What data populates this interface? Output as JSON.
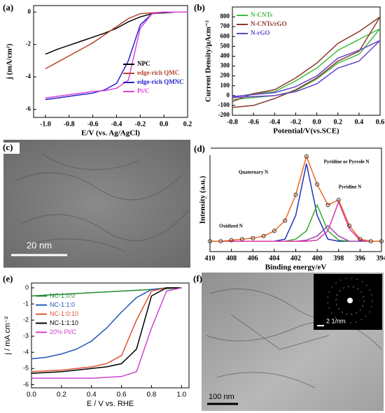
{
  "chart_data": [
    {
      "type": "line",
      "panel": "(a)",
      "xlabel": "E/V (vs. Ag/AgCl)",
      "ylabel": "j (mA/cm²)",
      "x": [
        -1.0,
        -0.9,
        -0.8,
        -0.7,
        -0.6,
        -0.5,
        -0.4,
        -0.3,
        -0.2,
        -0.1,
        0.0,
        0.1,
        0.2
      ],
      "xlim": [
        -1.1,
        0.2
      ],
      "xticks": [
        {
          "value": -1,
          "label": "-1.0"
        },
        -0.8,
        -0.6,
        -0.4,
        -0.2,
        {
          "value": 0,
          "label": "0.0"
        },
        0.2
      ],
      "ylim": [
        -6.5,
        0.4
      ],
      "yticks": [
        0,
        -2,
        -4,
        -6
      ],
      "legend": "lower right",
      "series": [
        {
          "name": "NPC",
          "color": "#000000",
          "values": [
            -2.6,
            -2.3,
            -2.05,
            -1.8,
            -1.55,
            -1.3,
            -1.0,
            -0.6,
            -0.3,
            -0.1,
            -0.05,
            0,
            0
          ]
        },
        {
          "name": "edge-rich QMC",
          "color": "#b5432a",
          "values": [
            -3.5,
            -3.1,
            -2.7,
            -2.3,
            -1.9,
            -1.4,
            -0.9,
            -0.4,
            -0.1,
            -0.05,
            0,
            0,
            0
          ]
        },
        {
          "name": "edge-rich QMNC",
          "color": "#2222cc",
          "values": [
            -5.4,
            -5.3,
            -5.2,
            -5.1,
            -5.0,
            -4.8,
            -4.4,
            -3.0,
            -0.8,
            -0.1,
            0,
            0,
            0
          ]
        },
        {
          "name": "Pt/C",
          "color": "#dd44dd",
          "values": [
            -5.3,
            -5.2,
            -5.1,
            -5.0,
            -4.9,
            -4.85,
            -4.7,
            -4.2,
            -1.0,
            -0.1,
            0,
            0,
            0
          ]
        }
      ]
    },
    {
      "type": "line",
      "panel": "(b)",
      "xlabel": "Potential/V(vs.SCE)",
      "ylabel": "Current Density/μAcm⁻²",
      "x": [
        -0.8,
        -0.6,
        -0.4,
        -0.2,
        0.0,
        0.2,
        0.4,
        0.6,
        0.4,
        0.2,
        0.0,
        -0.2,
        -0.4,
        -0.6,
        -0.8
      ],
      "xlim": [
        -0.8,
        0.6
      ],
      "xticks": [
        -0.8,
        -0.6,
        -0.4,
        -0.2,
        {
          "value": 0,
          "label": "0.0"
        },
        0.2,
        0.4,
        0.6
      ],
      "ylim": [
        -200,
        900
      ],
      "yticks": [
        -200,
        -100,
        0,
        100,
        200,
        300,
        400,
        500,
        600,
        700,
        800
      ],
      "legend": "upper left",
      "series": [
        {
          "name": "N-CNTs",
          "color": "#44bb44",
          "values": [
            -20,
            20,
            40,
            150,
            280,
            460,
            570,
            680,
            420,
            330,
            170,
            50,
            0,
            -20,
            -40
          ]
        },
        {
          "name": "N-CNTs/rGO",
          "color": "#8b3a2a",
          "values": [
            -60,
            20,
            60,
            180,
            330,
            530,
            650,
            800,
            450,
            350,
            180,
            60,
            -30,
            -100,
            -120
          ]
        },
        {
          "name": "N-rGO",
          "color": "#6644cc",
          "values": [
            -10,
            10,
            30,
            90,
            200,
            380,
            460,
            560,
            350,
            280,
            120,
            40,
            0,
            -10,
            -20
          ]
        }
      ]
    },
    {
      "type": "line",
      "panel": "(d)",
      "xlabel": "Binding energy/eV",
      "ylabel": "Intensity (a.u.)",
      "annotations": [
        "Quaternary N",
        "Pyridine or Pyrrole N",
        "Pyridine N",
        "Oxidized N"
      ],
      "x": [
        410,
        409,
        408,
        407,
        406,
        405,
        404,
        403,
        402,
        401,
        400,
        399,
        398,
        397,
        396,
        395,
        394
      ],
      "xlim": [
        410,
        394
      ],
      "xticks": [
        410,
        408,
        406,
        404,
        402,
        400,
        398,
        396,
        394
      ],
      "ylim": [
        0,
        100
      ],
      "series": [
        {
          "color": "#2233bb",
          "values": [
            10,
            10,
            10,
            10,
            10,
            10,
            10,
            12,
            35,
            85,
            35,
            12,
            10,
            10,
            10,
            10,
            10
          ]
        },
        {
          "color": "#33aa33",
          "values": [
            10,
            10,
            10,
            10,
            10,
            10,
            10,
            10,
            12,
            20,
            45,
            20,
            11,
            10,
            10,
            10,
            10
          ]
        },
        {
          "color": "#9944aa",
          "values": [
            10,
            10,
            10,
            10,
            10,
            10,
            10,
            10,
            10,
            11,
            15,
            25,
            15,
            10,
            10,
            10,
            10
          ]
        },
        {
          "color": "#dd33aa",
          "values": [
            10,
            10,
            10,
            10,
            10,
            10,
            10,
            10,
            10,
            10,
            11,
            20,
            48,
            22,
            11,
            10,
            10
          ]
        },
        {
          "color": "#ee6622",
          "values": [
            10,
            10,
            11,
            12,
            13,
            15,
            20,
            30,
            55,
            92,
            65,
            45,
            50,
            25,
            12,
            10,
            10
          ]
        },
        {
          "color": "#333333",
          "marker": true,
          "values": [
            10,
            10,
            11,
            12,
            13,
            15,
            20,
            30,
            55,
            92,
            65,
            45,
            50,
            25,
            12,
            10,
            10
          ]
        }
      ]
    },
    {
      "type": "line",
      "panel": "(e)",
      "xlabel": "E / V vs. RHE",
      "ylabel": "j / mA cm⁻²",
      "x": [
        0.0,
        0.1,
        0.2,
        0.3,
        0.4,
        0.5,
        0.6,
        0.7,
        0.8,
        0.9,
        1.0
      ],
      "xlim": [
        0,
        1.05
      ],
      "xticks": [
        {
          "value": 0,
          "label": "0.0"
        },
        0.2,
        0.4,
        0.6,
        0.8,
        {
          "value": 1,
          "label": "1.0"
        }
      ],
      "ylim": [
        -6.2,
        0.3
      ],
      "yticks": [
        0,
        -1,
        -2,
        -3,
        -4,
        -5,
        -6
      ],
      "legend": "center left",
      "series": [
        {
          "name": "NC-1:0:0",
          "color": "#228833",
          "values": [
            -0.5,
            -0.45,
            -0.4,
            -0.35,
            -0.3,
            -0.25,
            -0.2,
            -0.15,
            -0.1,
            -0.05,
            0
          ]
        },
        {
          "name": "NC-1:1:0",
          "color": "#2255bb",
          "values": [
            -4.4,
            -4.3,
            -4.1,
            -3.8,
            -3.3,
            -2.5,
            -1.5,
            -0.6,
            -0.1,
            0,
            0
          ]
        },
        {
          "name": "NC-1:0:10",
          "color": "#dd5533",
          "values": [
            -5.2,
            -5.15,
            -5.1,
            -5.0,
            -4.9,
            -4.7,
            -4.2,
            -2.0,
            -0.2,
            0,
            0
          ]
        },
        {
          "name": "NC-1:1:10",
          "color": "#000000",
          "values": [
            -5.3,
            -5.25,
            -5.2,
            -5.1,
            -5.0,
            -4.9,
            -4.7,
            -3.8,
            -0.5,
            0,
            0
          ]
        },
        {
          "name": "20% Pt/C",
          "color": "#cc44cc",
          "values": [
            -5.6,
            -5.6,
            -5.6,
            -5.6,
            -5.6,
            -5.55,
            -5.5,
            -5.2,
            -2.5,
            -0.2,
            0
          ]
        }
      ]
    }
  ],
  "images": [
    {
      "panel": "(c)",
      "inset_label": "c",
      "scale_bar": "20 nm"
    },
    {
      "panel": "(f)",
      "scale_bar": "100 nm",
      "inset_scale_bar": "2 1/nm"
    }
  ]
}
